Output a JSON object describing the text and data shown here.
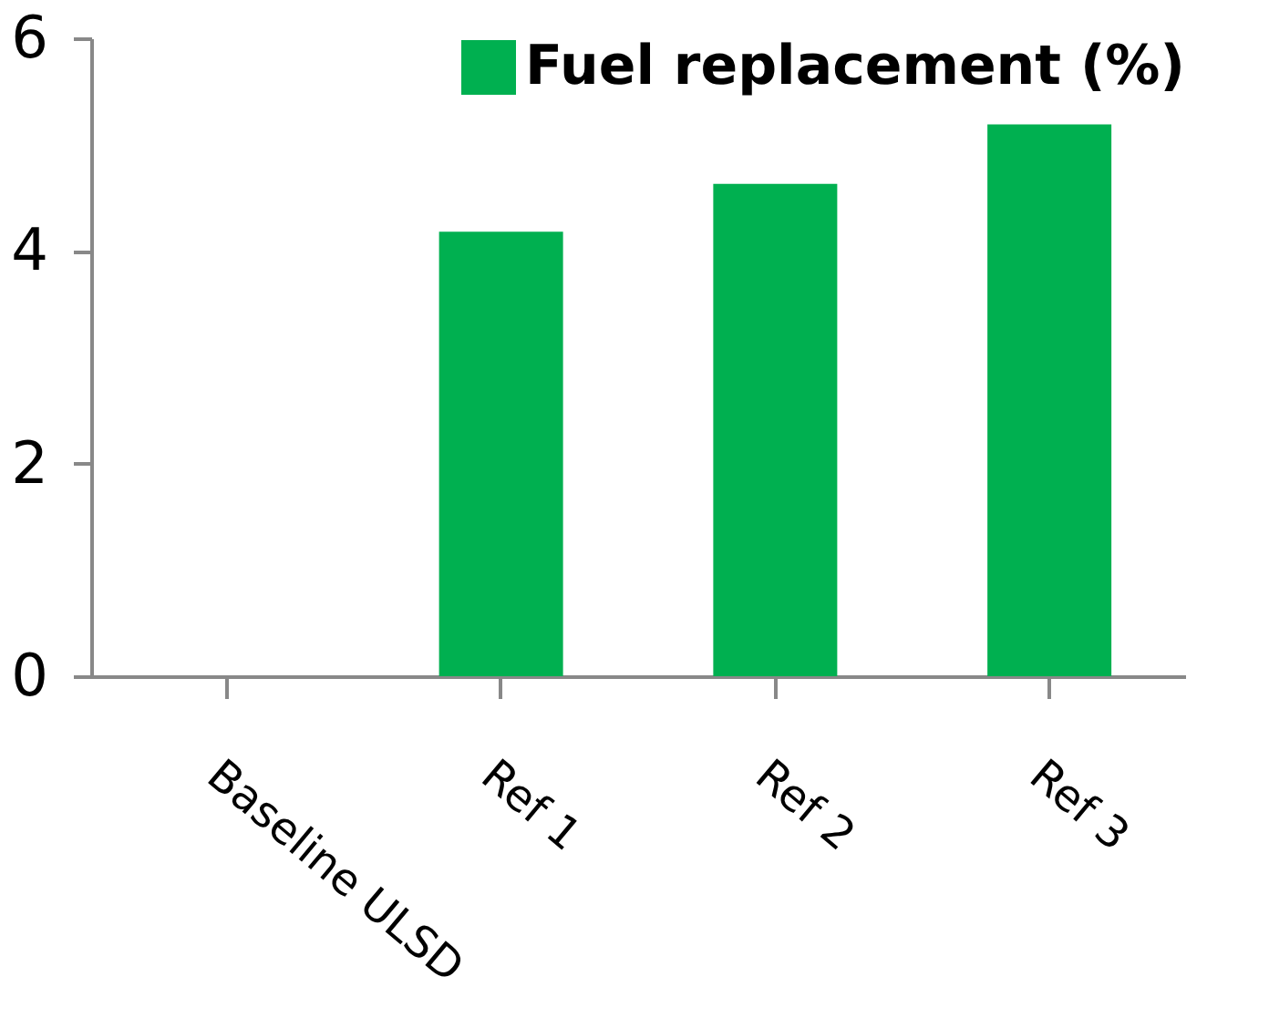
{
  "chart_data": {
    "type": "bar",
    "categories": [
      "Baseline ULSD",
      "Ref 1",
      "Ref 2",
      "Ref 3"
    ],
    "series": [
      {
        "name": "Fuel replacement (%)",
        "color": "#00b050",
        "values": [
          0,
          4.18,
          4.63,
          5.19
        ]
      }
    ],
    "ylim": [
      0,
      6
    ],
    "yticks": [
      0,
      2,
      4,
      6
    ],
    "grid": false,
    "legend": "top right"
  }
}
